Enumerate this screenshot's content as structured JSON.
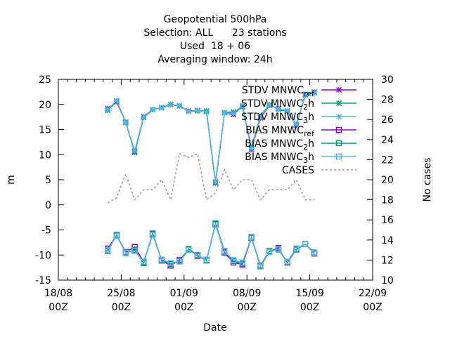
{
  "chart_data": {
    "type": "line",
    "title_lines": [
      "Geopotential 500hPa",
      "Selection: ALL      23 stations",
      "Used  18 + 06",
      "Averaging window: 24h"
    ],
    "xlabel": "Date",
    "ylabel": "m",
    "y2label": "No cases",
    "xlim": [
      0,
      35
    ],
    "ylim": [
      -15,
      25
    ],
    "y2lim": [
      10,
      30
    ],
    "x_ticks": [
      {
        "x": 0,
        "line1": "18/08",
        "line2": "00Z"
      },
      {
        "x": 7,
        "line1": "25/08",
        "line2": "00Z"
      },
      {
        "x": 14,
        "line1": "01/09",
        "line2": "00Z"
      },
      {
        "x": 21,
        "line1": "08/09",
        "line2": "00Z"
      },
      {
        "x": 28,
        "line1": "15/09",
        "line2": "00Z"
      },
      {
        "x": 35,
        "line1": "22/09",
        "line2": "00Z"
      }
    ],
    "y_ticks": [
      -15,
      -10,
      -5,
      0,
      5,
      10,
      15,
      20,
      25
    ],
    "y2_ticks": [
      10,
      12,
      14,
      16,
      18,
      20,
      22,
      24,
      26,
      28,
      30
    ],
    "x": [
      5.5,
      6.5,
      7.5,
      8.5,
      9.5,
      10.5,
      11.5,
      12.5,
      13.5,
      14.5,
      15.5,
      16.5,
      17.5,
      18.5,
      19.5,
      20.5,
      21.5,
      22.5,
      23.5,
      24.5,
      25.5,
      26.5,
      27.5,
      28.5
    ],
    "legend_position": "top-right",
    "legend": [
      {
        "name": "STDV MNWC_ref",
        "base": "STDV MNWC",
        "sub": "ref",
        "color": "#9400d3",
        "marker": "star"
      },
      {
        "name": "STDV MNWC_2h",
        "base": "STDV MNWC",
        "sub": "2",
        "suffix": "h",
        "color": "#009e73",
        "marker": "star"
      },
      {
        "name": "STDV MNWC_3h",
        "base": "STDV MNWC",
        "sub": "3",
        "suffix": "h",
        "color": "#56b4e9",
        "marker": "star"
      },
      {
        "name": "BIAS MNWC_ref",
        "base": "BIAS MNWC",
        "sub": "ref",
        "color": "#9400d3",
        "marker": "square"
      },
      {
        "name": "BIAS MNWC_2h",
        "base": "BIAS MNWC",
        "sub": "2",
        "suffix": "h",
        "color": "#009e73",
        "marker": "square"
      },
      {
        "name": "BIAS MNWC_3h",
        "base": "BIAS MNWC",
        "sub": "3",
        "suffix": "h",
        "color": "#56b4e9",
        "marker": "square"
      },
      {
        "name": "CASES",
        "base": "CASES",
        "color": "#999999",
        "marker": "none",
        "dashed": true
      }
    ],
    "series": [
      {
        "name": "STDV MNWC_ref",
        "axis": "y",
        "color": "#9400d3",
        "marker": "star",
        "values": [
          19.2,
          20.5,
          16.4,
          10.6,
          17.6,
          19.0,
          19.3,
          20.0,
          19.7,
          18.7,
          18.8,
          18.6,
          4.4,
          18.3,
          18.0,
          19.7,
          11.0,
          17.3,
          19.8,
          19.2,
          18.6,
          15.8,
          22.0,
          22.5
        ]
      },
      {
        "name": "STDV MNWC_2h",
        "axis": "y",
        "color": "#009e73",
        "marker": "star",
        "values": [
          18.8,
          20.7,
          16.5,
          10.4,
          17.4,
          18.9,
          19.4,
          20.0,
          19.7,
          18.6,
          18.7,
          18.7,
          4.3,
          18.4,
          18.5,
          19.5,
          11.4,
          17.7,
          20.0,
          19.0,
          18.6,
          16.0,
          21.9,
          22.3
        ]
      },
      {
        "name": "STDV MNWC_3h",
        "axis": "y",
        "color": "#56b4e9",
        "marker": "star",
        "values": [
          19.0,
          20.8,
          16.3,
          10.8,
          17.5,
          19.0,
          19.3,
          19.9,
          19.8,
          18.6,
          18.8,
          18.5,
          4.6,
          18.3,
          18.2,
          19.8,
          11.2,
          17.5,
          19.9,
          19.1,
          18.8,
          15.9,
          22.1,
          22.4
        ]
      },
      {
        "name": "BIAS MNWC_ref",
        "axis": "y",
        "color": "#9400d3",
        "marker": "square",
        "values": [
          -8.7,
          -6.1,
          -9.4,
          -8.4,
          -11.4,
          -5.8,
          -11.1,
          -12.1,
          -11.0,
          -8.9,
          -10.2,
          -11.0,
          -3.9,
          -9.5,
          -11.5,
          -11.9,
          -6.6,
          -12.1,
          -9.3,
          -8.6,
          -11.5,
          -8.9,
          -7.8,
          -9.7
        ]
      },
      {
        "name": "BIAS MNWC_2h",
        "axis": "y",
        "color": "#009e73",
        "marker": "square",
        "values": [
          -9.2,
          -6.0,
          -9.6,
          -9.0,
          -11.6,
          -5.7,
          -11.0,
          -11.8,
          -11.2,
          -8.8,
          -10.0,
          -11.1,
          -3.7,
          -9.2,
          -11.2,
          -11.7,
          -6.4,
          -12.2,
          -9.2,
          -8.9,
          -11.4,
          -8.9,
          -7.8,
          -9.5
        ]
      },
      {
        "name": "BIAS MNWC_3h",
        "axis": "y",
        "color": "#56b4e9",
        "marker": "square",
        "values": [
          -9.0,
          -6.2,
          -9.5,
          -9.2,
          -11.3,
          -6.0,
          -10.9,
          -11.6,
          -11.3,
          -9.0,
          -10.1,
          -10.9,
          -4.0,
          -9.3,
          -11.0,
          -11.5,
          -6.5,
          -12.3,
          -9.4,
          -8.8,
          -11.3,
          -8.7,
          -7.8,
          -9.6
        ]
      },
      {
        "name": "CASES",
        "axis": "y2",
        "color": "#999999",
        "marker": "none",
        "dashed": true,
        "values": [
          17.7,
          18.2,
          20.6,
          18.0,
          19.0,
          19.0,
          20.0,
          18.0,
          22.6,
          22.2,
          22.6,
          18.0,
          18.7,
          21.0,
          19.0,
          20.0,
          20.0,
          18.0,
          19.0,
          19.0,
          19.0,
          20.0,
          18.0,
          18.0
        ]
      }
    ]
  }
}
